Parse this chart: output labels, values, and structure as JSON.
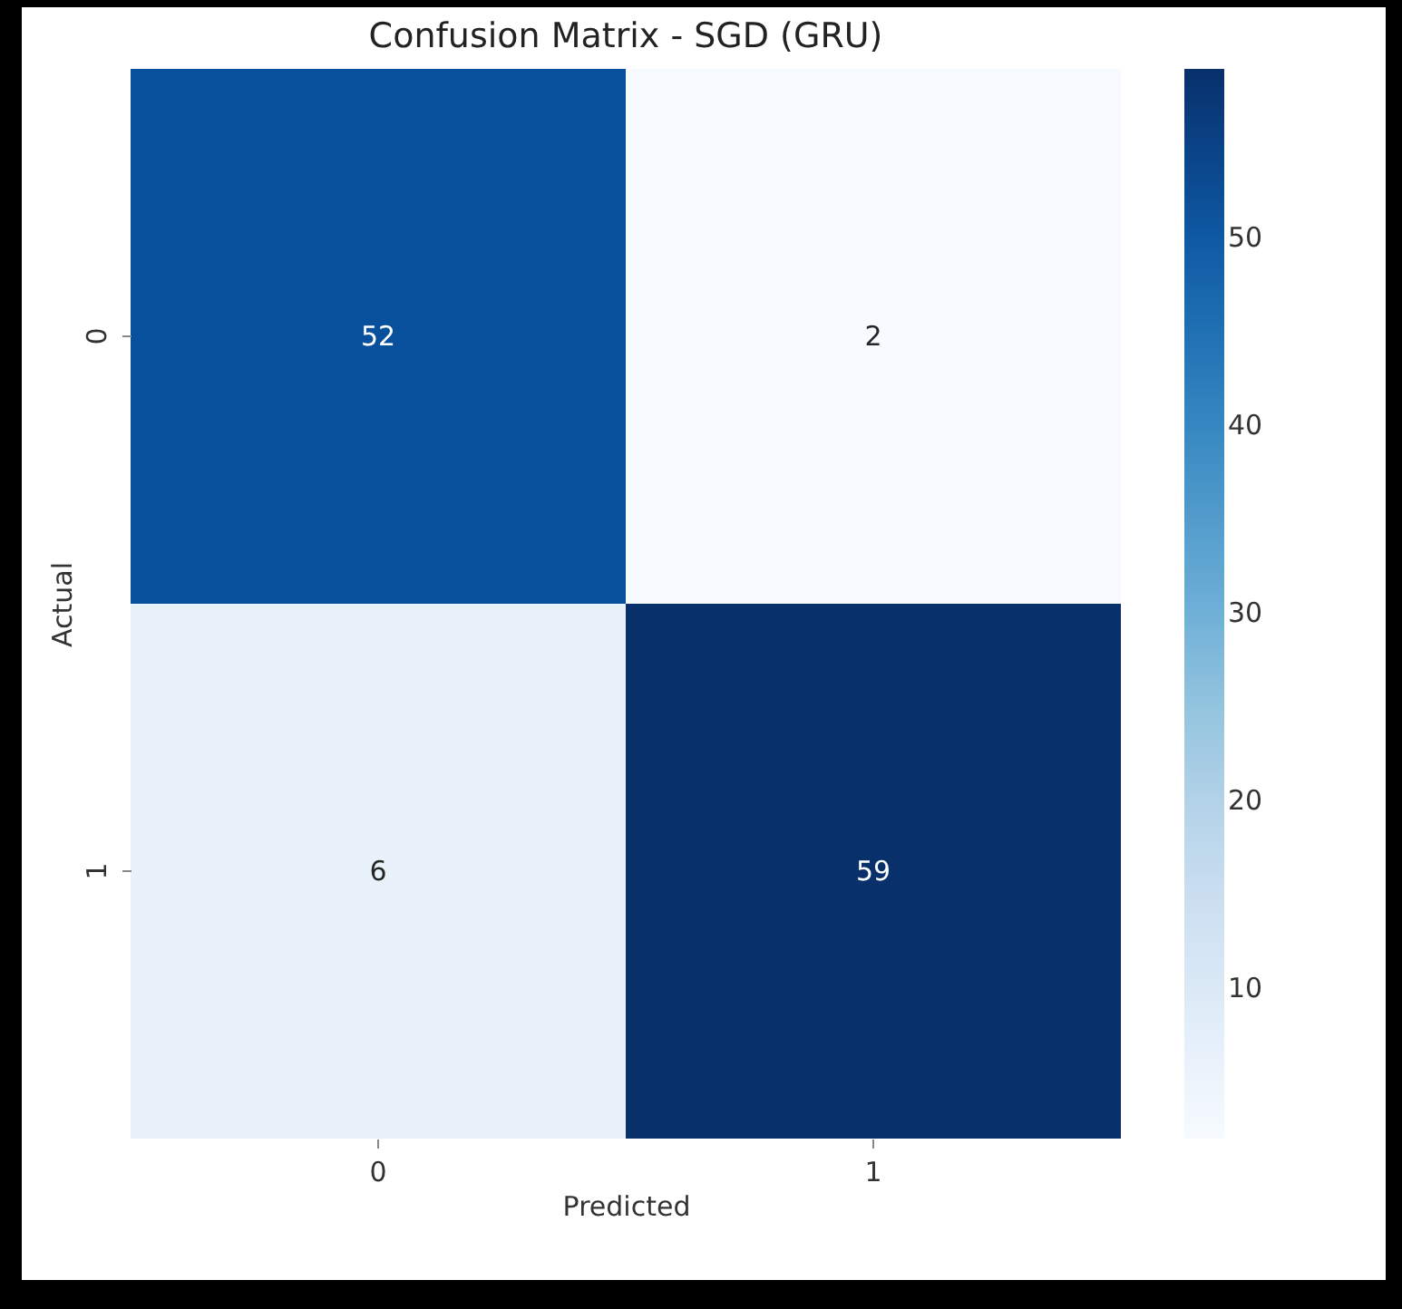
{
  "chart_data": {
    "type": "heatmap",
    "title": "Confusion Matrix - SGD (GRU)",
    "xlabel": "Predicted",
    "ylabel": "Actual",
    "categories": [
      "0",
      "1"
    ],
    "y_categories": [
      "0",
      "1"
    ],
    "cells": [
      [
        52,
        2
      ],
      [
        6,
        59
      ]
    ],
    "clim": [
      2,
      59
    ],
    "cticks": [
      10,
      20,
      30,
      40,
      50
    ],
    "data_labels": true
  }
}
